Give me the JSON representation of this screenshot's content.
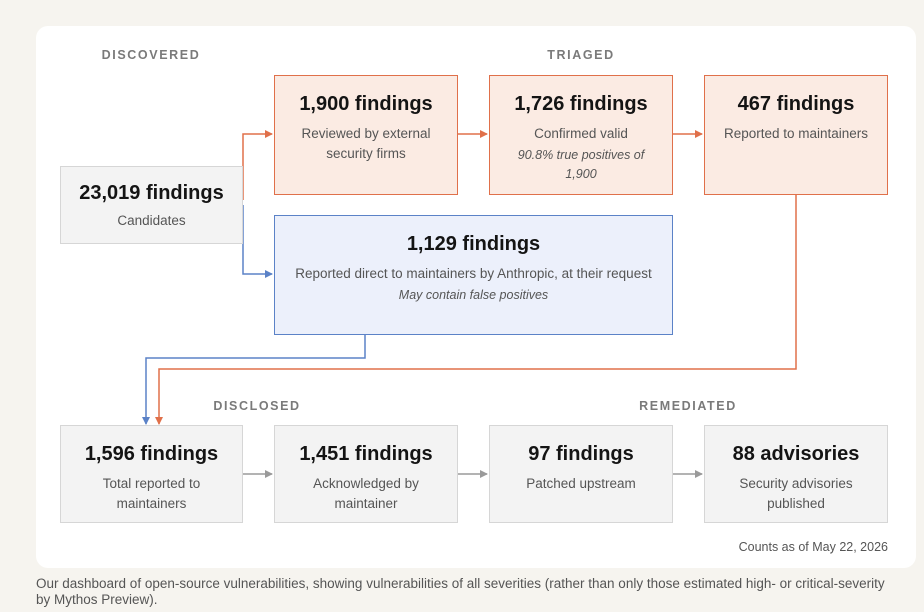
{
  "sections": {
    "discovered": "DISCOVERED",
    "triaged": "TRIAGED",
    "disclosed": "DISCLOSED",
    "remediated": "REMEDIATED"
  },
  "nodes": {
    "candidates": {
      "count": "23,019 findings",
      "desc": "Candidates"
    },
    "reviewed": {
      "count": "1,900 findings",
      "desc": "Reviewed by external security firms"
    },
    "confirmed": {
      "count": "1,726 findings",
      "desc": "Confirmed valid",
      "note": "90.8% true positives of 1,900"
    },
    "reported": {
      "count": "467 findings",
      "desc": "Reported to maintainers"
    },
    "direct": {
      "count": "1,129 findings",
      "desc": "Reported direct to maintainers by Anthropic, at their request",
      "note": "May contain false positives"
    },
    "total_reported": {
      "count": "1,596 findings",
      "desc": "Total reported to maintainers"
    },
    "acknowledged": {
      "count": "1,451 findings",
      "desc": "Acknowledged by maintainer"
    },
    "patched": {
      "count": "97 findings",
      "desc": "Patched upstream"
    },
    "advisories": {
      "count": "88 advisories",
      "desc": "Security advisories published"
    }
  },
  "counts_as_of": "Counts as of May 22, 2026",
  "caption": "Our dashboard of open-source vulnerabilities, showing vulnerabilities of all severities (rather than only those estimated high- or critical-severity by Mythos Preview).",
  "colors": {
    "orange": "#e0704a",
    "blue": "#5b82c7",
    "grey": "#9a9a9a"
  }
}
